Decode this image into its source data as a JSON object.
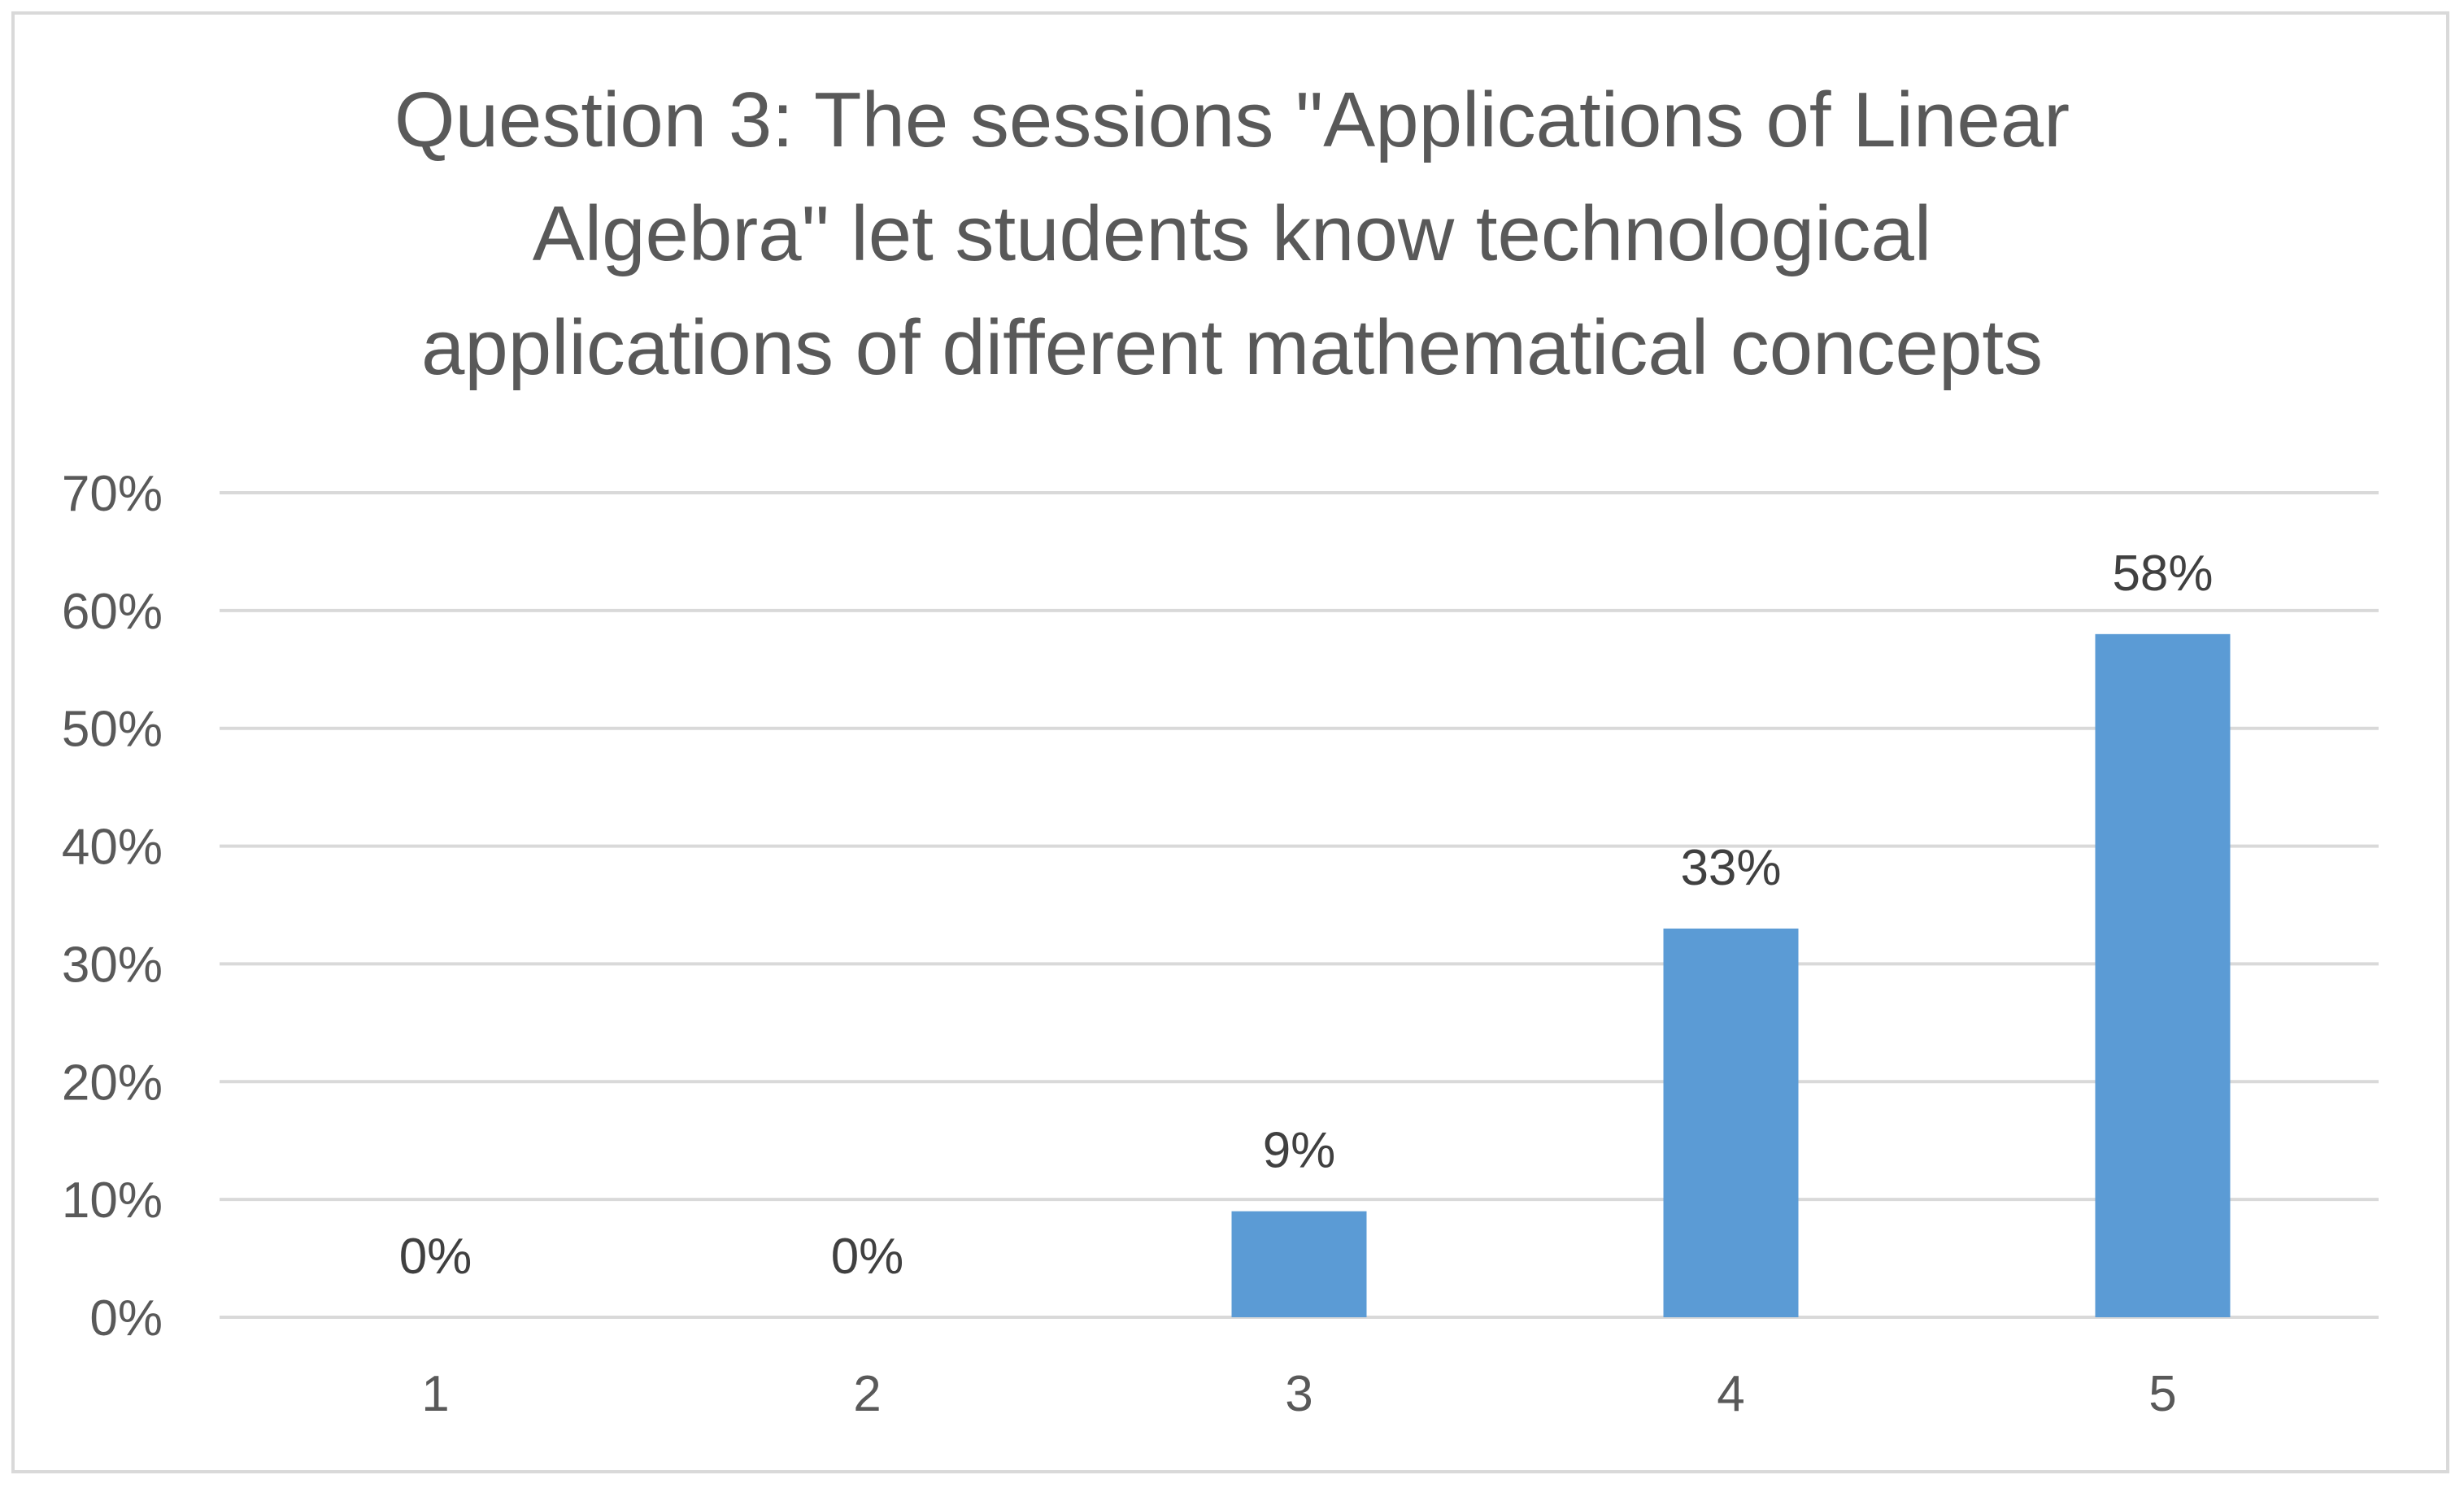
{
  "chart_data": {
    "type": "bar",
    "title_lines": [
      "Question 3: The sessions \"Applications of Linear",
      "Algebra\" let students know technological",
      "applications of different mathematical concepts"
    ],
    "categories": [
      "1",
      "2",
      "3",
      "4",
      "5"
    ],
    "values": [
      0,
      0,
      9,
      33,
      58
    ],
    "data_labels": [
      "0%",
      "0%",
      "9%",
      "33%",
      "58%"
    ],
    "y_ticks": [
      "0%",
      "10%",
      "20%",
      "30%",
      "40%",
      "50%",
      "60%",
      "70%"
    ],
    "ylim": [
      0,
      70
    ],
    "xlabel": "",
    "ylabel": "",
    "grid": true,
    "legend": "none",
    "colors": {
      "bar": "#5b9bd5",
      "grid": "#d9d9d9",
      "text": "#595959",
      "label": "#404040",
      "border": "#d9d9d9"
    }
  }
}
